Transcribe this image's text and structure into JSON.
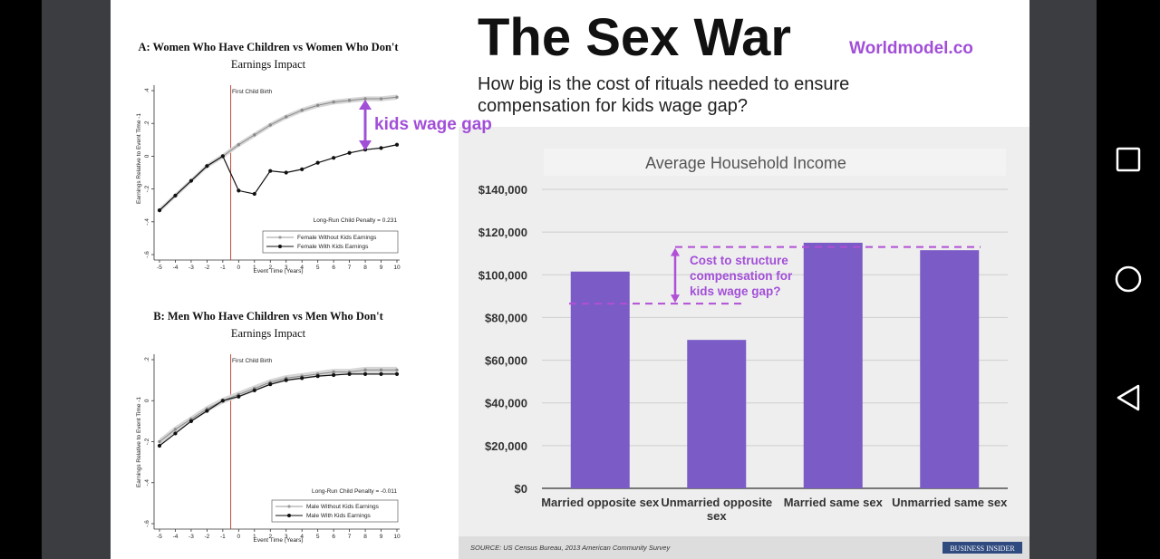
{
  "slide": {
    "title": "The Sex War",
    "brand": "Worldmodel.co",
    "subtitle_line1": "How big is the cost of rituals needed to ensure",
    "subtitle_line2": "compensation for kids wage gap?",
    "gap_label": "kids wage gap",
    "source": "SOURCE: US Census Bureau, 2013 American Community Survey",
    "badge": "BUSINESS INSIDER",
    "colors": {
      "purple": "#a24fd8",
      "bar": "#7b5bc6",
      "dashed": "#b14fd6",
      "red_line": "#c0392b"
    }
  },
  "panel_a": {
    "title": "A: Women Who Have Children vs Women Who Don't",
    "subtitle": "Earnings Impact",
    "ylabel": "Earnings Relative to Event Time -1",
    "xlabel": "Event Time (Years)",
    "event_label": "First Child Birth",
    "penalty": "Long-Run Child Penalty = 0.231",
    "legend": [
      "Female Without Kids Earnings",
      "Female With Kids Earnings"
    ]
  },
  "panel_b": {
    "title": "B: Men Who Have Children vs Men Who Don't",
    "subtitle": "Earnings Impact",
    "ylabel": "Earnings Relative to Event Time -1",
    "xlabel": "Event Time (Years)",
    "event_label": "First Child Birth",
    "penalty": "Long-Run Child Penalty = -0.011",
    "legend": [
      "Male Without Kids Earnings",
      "Male With Kids Earnings"
    ]
  },
  "chart_data": [
    {
      "type": "line",
      "title": "A: Women Who Have Children vs Women Who Don't",
      "subtitle": "Earnings Impact",
      "xlabel": "Event Time (Years)",
      "ylabel": "Earnings Relative to Event Time -1",
      "xlim": [
        -5,
        10
      ],
      "ylim": [
        -0.6,
        0.4
      ],
      "xticks": [
        "-5",
        "-4",
        "-3",
        "-2",
        "-1",
        "0",
        "1",
        "2",
        "3",
        "4",
        "5",
        "6",
        "7",
        "8",
        "9",
        "10"
      ],
      "yticks": [
        ".4",
        ".2",
        "0",
        "-.2",
        "-.4",
        "-.6"
      ],
      "x": [
        -5,
        -4,
        -3,
        -2,
        -1,
        0,
        1,
        2,
        3,
        4,
        5,
        6,
        7,
        8,
        9,
        10
      ],
      "series": [
        {
          "name": "Female Without Kids Earnings",
          "values": [
            -0.33,
            -0.24,
            -0.15,
            -0.06,
            0.0,
            0.07,
            0.13,
            0.19,
            0.24,
            0.28,
            0.31,
            0.33,
            0.34,
            0.35,
            0.35,
            0.36
          ]
        },
        {
          "name": "Female With Kids Earnings",
          "values": [
            -0.33,
            -0.24,
            -0.15,
            -0.06,
            0.0,
            -0.21,
            -0.23,
            -0.09,
            -0.1,
            -0.08,
            -0.04,
            -0.01,
            0.02,
            0.04,
            0.05,
            0.07
          ]
        }
      ],
      "grid": false,
      "legend": "bottom-right"
    },
    {
      "type": "line",
      "title": "B: Men Who Have Children vs Men Who Don't",
      "subtitle": "Earnings Impact",
      "xlabel": "Event Time (Years)",
      "ylabel": "Earnings Relative to Event Time -1",
      "xlim": [
        -5,
        10
      ],
      "ylim": [
        -0.6,
        0.2
      ],
      "xticks": [
        "-5",
        "-4",
        "-3",
        "-2",
        "-1",
        "0",
        "1",
        "2",
        "3",
        "4",
        "5",
        "6",
        "7",
        "8",
        "9",
        "10"
      ],
      "yticks": [
        ".2",
        "0",
        "-.2",
        "-.4",
        "-.6"
      ],
      "x": [
        -5,
        -4,
        -3,
        -2,
        -1,
        0,
        1,
        2,
        3,
        4,
        5,
        6,
        7,
        8,
        9,
        10
      ],
      "series": [
        {
          "name": "Male Without Kids Earnings",
          "values": [
            -0.2,
            -0.14,
            -0.09,
            -0.04,
            0.0,
            0.03,
            0.06,
            0.09,
            0.11,
            0.12,
            0.13,
            0.14,
            0.14,
            0.15,
            0.15,
            0.15
          ]
        },
        {
          "name": "Male With Kids Earnings",
          "values": [
            -0.22,
            -0.16,
            -0.1,
            -0.05,
            0.0,
            0.02,
            0.05,
            0.08,
            0.1,
            0.11,
            0.12,
            0.125,
            0.13,
            0.13,
            0.13,
            0.13
          ]
        }
      ],
      "grid": false,
      "legend": "bottom-right"
    },
    {
      "type": "bar",
      "title": "Average Household Income",
      "categories": [
        "Married opposite sex",
        "Unmarried opposite sex",
        "Married same sex",
        "Unmarried same sex"
      ],
      "values": [
        101500,
        69500,
        115000,
        111500
      ],
      "ylim": [
        0,
        140000
      ],
      "yticks": [
        "$0",
        "$20,000",
        "$40,000",
        "$60,000",
        "$80,000",
        "$100,000",
        "$120,000",
        "$140,000"
      ],
      "grid": true,
      "annotation": {
        "line1": "Cost to structure",
        "line2": "compensation for",
        "line3": "kids wage gap?",
        "lower_value": 86500,
        "upper_value": 113000
      }
    }
  ],
  "nav": {
    "square_icon": "recent-apps-icon",
    "circle_icon": "home-icon",
    "triangle_icon": "back-icon"
  }
}
